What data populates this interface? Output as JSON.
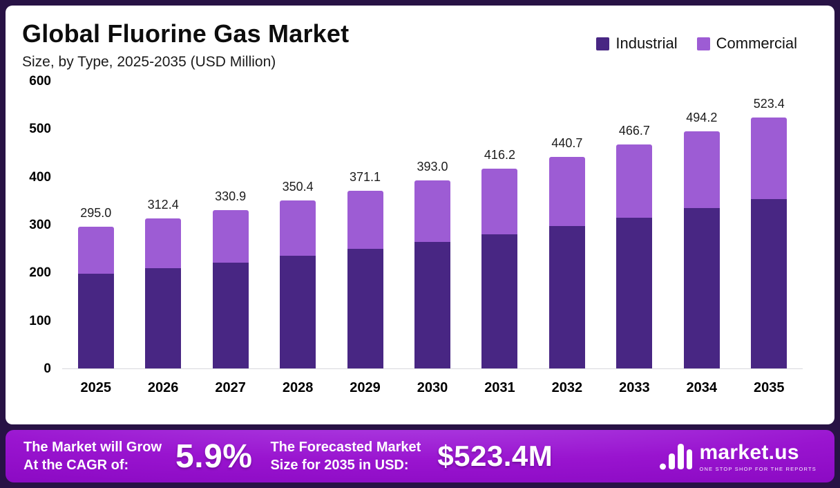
{
  "header": {
    "title": "Global Fluorine Gas Market",
    "subtitle": "Size, by Type, 2025-2035 (USD Million)"
  },
  "legend": [
    {
      "label": "Industrial",
      "color": "#482683"
    },
    {
      "label": "Commercial",
      "color": "#9d5cd4"
    }
  ],
  "chart_data": {
    "type": "bar",
    "stacked": true,
    "title": "Global Fluorine Gas Market Size, by Type, 2025-2035 (USD Million)",
    "xlabel": "",
    "ylabel": "USD Million",
    "ylim": [
      0,
      600
    ],
    "yticks": [
      0,
      100,
      200,
      300,
      400,
      500,
      600
    ],
    "grid": false,
    "legend_position": "top-right",
    "categories": [
      "2025",
      "2026",
      "2027",
      "2028",
      "2029",
      "2030",
      "2031",
      "2032",
      "2033",
      "2034",
      "2035"
    ],
    "series": [
      {
        "name": "Industrial",
        "color": "#482683",
        "values": [
          197.0,
          209.0,
          221.0,
          235.0,
          249.0,
          264.0,
          280.0,
          297.0,
          314.0,
          334.0,
          353.0
        ]
      },
      {
        "name": "Commercial",
        "color": "#9d5cd4",
        "values": [
          98.0,
          103.4,
          109.9,
          115.4,
          122.1,
          129.0,
          136.2,
          143.7,
          152.7,
          160.2,
          170.4
        ]
      }
    ],
    "totals": [
      295.0,
      312.4,
      330.9,
      350.4,
      371.1,
      393.0,
      416.2,
      440.7,
      466.7,
      494.2,
      523.4
    ]
  },
  "footer": {
    "left_line1": "The Market will Grow",
    "left_line2": "At the CAGR of:",
    "cagr": "5.9%",
    "mid_line1": "The Forecasted Market",
    "mid_line2": "Size for 2035 in USD:",
    "forecast": "$523.4M",
    "brand": "market.us",
    "brand_tagline": "ONE STOP SHOP FOR THE REPORTS"
  }
}
